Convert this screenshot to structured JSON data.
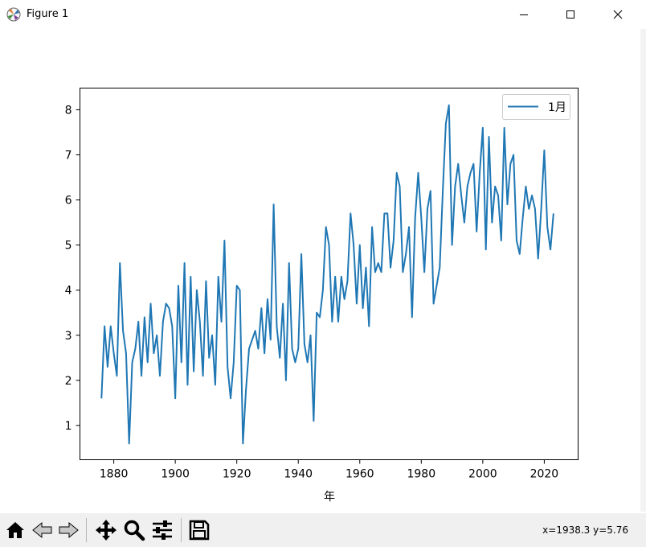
{
  "window": {
    "title": "Figure 1"
  },
  "toolbar": {
    "coords": "x=1938.3 y=5.76"
  },
  "chart_data": {
    "type": "line",
    "xlabel": "年",
    "ylabel": "",
    "xlim": [
      1869,
      2031
    ],
    "ylim": [
      0.24,
      8.48
    ],
    "xticks": [
      1880,
      1900,
      1920,
      1940,
      1960,
      1980,
      2000,
      2020
    ],
    "yticks": [
      1,
      2,
      3,
      4,
      5,
      6,
      7,
      8
    ],
    "legend": "top-right",
    "grid": false,
    "color": "#1f77b4",
    "series": [
      {
        "name": "1月",
        "x": [
          1876,
          1877,
          1878,
          1879,
          1880,
          1881,
          1882,
          1883,
          1884,
          1885,
          1886,
          1887,
          1888,
          1889,
          1890,
          1891,
          1892,
          1893,
          1894,
          1895,
          1896,
          1897,
          1898,
          1899,
          1900,
          1901,
          1902,
          1903,
          1904,
          1905,
          1906,
          1907,
          1908,
          1909,
          1910,
          1911,
          1912,
          1913,
          1914,
          1915,
          1916,
          1917,
          1918,
          1919,
          1920,
          1921,
          1922,
          1923,
          1924,
          1925,
          1926,
          1927,
          1928,
          1929,
          1930,
          1931,
          1932,
          1933,
          1934,
          1935,
          1936,
          1937,
          1938,
          1939,
          1940,
          1941,
          1942,
          1943,
          1944,
          1945,
          1946,
          1947,
          1948,
          1949,
          1950,
          1951,
          1952,
          1953,
          1954,
          1955,
          1956,
          1957,
          1958,
          1959,
          1960,
          1961,
          1962,
          1963,
          1964,
          1965,
          1966,
          1967,
          1968,
          1969,
          1970,
          1971,
          1972,
          1973,
          1974,
          1975,
          1976,
          1977,
          1978,
          1979,
          1980,
          1981,
          1982,
          1983,
          1984,
          1985,
          1986,
          1987,
          1988,
          1989,
          1990,
          1991,
          1992,
          1993,
          1994,
          1995,
          1996,
          1997,
          1998,
          1999,
          2000,
          2001,
          2002,
          2003,
          2004,
          2005,
          2006,
          2007,
          2008,
          2009,
          2010,
          2011,
          2012,
          2013,
          2014,
          2015,
          2016,
          2017,
          2018,
          2019,
          2020,
          2021,
          2022,
          2023
        ],
        "values": [
          1.6,
          3.2,
          2.3,
          3.2,
          2.6,
          2.1,
          4.6,
          3.1,
          2.6,
          0.6,
          2.4,
          2.7,
          3.3,
          2.1,
          3.4,
          2.4,
          3.7,
          2.6,
          3.0,
          2.1,
          3.3,
          3.7,
          3.6,
          3.2,
          1.6,
          4.1,
          2.4,
          4.6,
          1.9,
          4.3,
          2.2,
          4.0,
          3.3,
          2.1,
          4.2,
          2.5,
          3.0,
          1.9,
          4.3,
          3.3,
          5.1,
          2.3,
          1.6,
          2.4,
          4.1,
          4.0,
          0.6,
          1.8,
          2.7,
          2.9,
          3.1,
          2.7,
          3.6,
          2.6,
          3.8,
          2.9,
          5.9,
          3.2,
          2.5,
          3.7,
          2.0,
          4.6,
          2.7,
          2.4,
          2.7,
          4.8,
          2.8,
          2.4,
          3.0,
          1.1,
          3.5,
          3.4,
          4.0,
          5.4,
          5.0,
          3.3,
          4.3,
          3.3,
          4.3,
          3.8,
          4.2,
          5.7,
          5.0,
          3.7,
          5.0,
          3.6,
          4.5,
          3.2,
          5.4,
          4.4,
          4.6,
          4.4,
          5.7,
          5.7,
          4.5,
          5.1,
          6.6,
          6.3,
          4.4,
          4.8,
          5.4,
          3.4,
          5.6,
          6.6,
          5.6,
          4.4,
          5.8,
          6.2,
          3.7,
          4.1,
          4.5,
          6.2,
          7.7,
          8.1,
          5.0,
          6.3,
          6.8,
          6.1,
          5.5,
          6.3,
          6.6,
          6.8,
          5.3,
          6.6,
          7.6,
          4.9,
          7.4,
          5.5,
          6.3,
          6.1,
          5.1,
          7.6,
          5.9,
          6.8,
          7.0,
          5.1,
          4.8,
          5.6,
          6.3,
          5.8,
          6.1,
          5.8,
          4.7,
          5.8,
          7.1,
          5.4,
          4.9,
          5.7
        ]
      }
    ]
  }
}
